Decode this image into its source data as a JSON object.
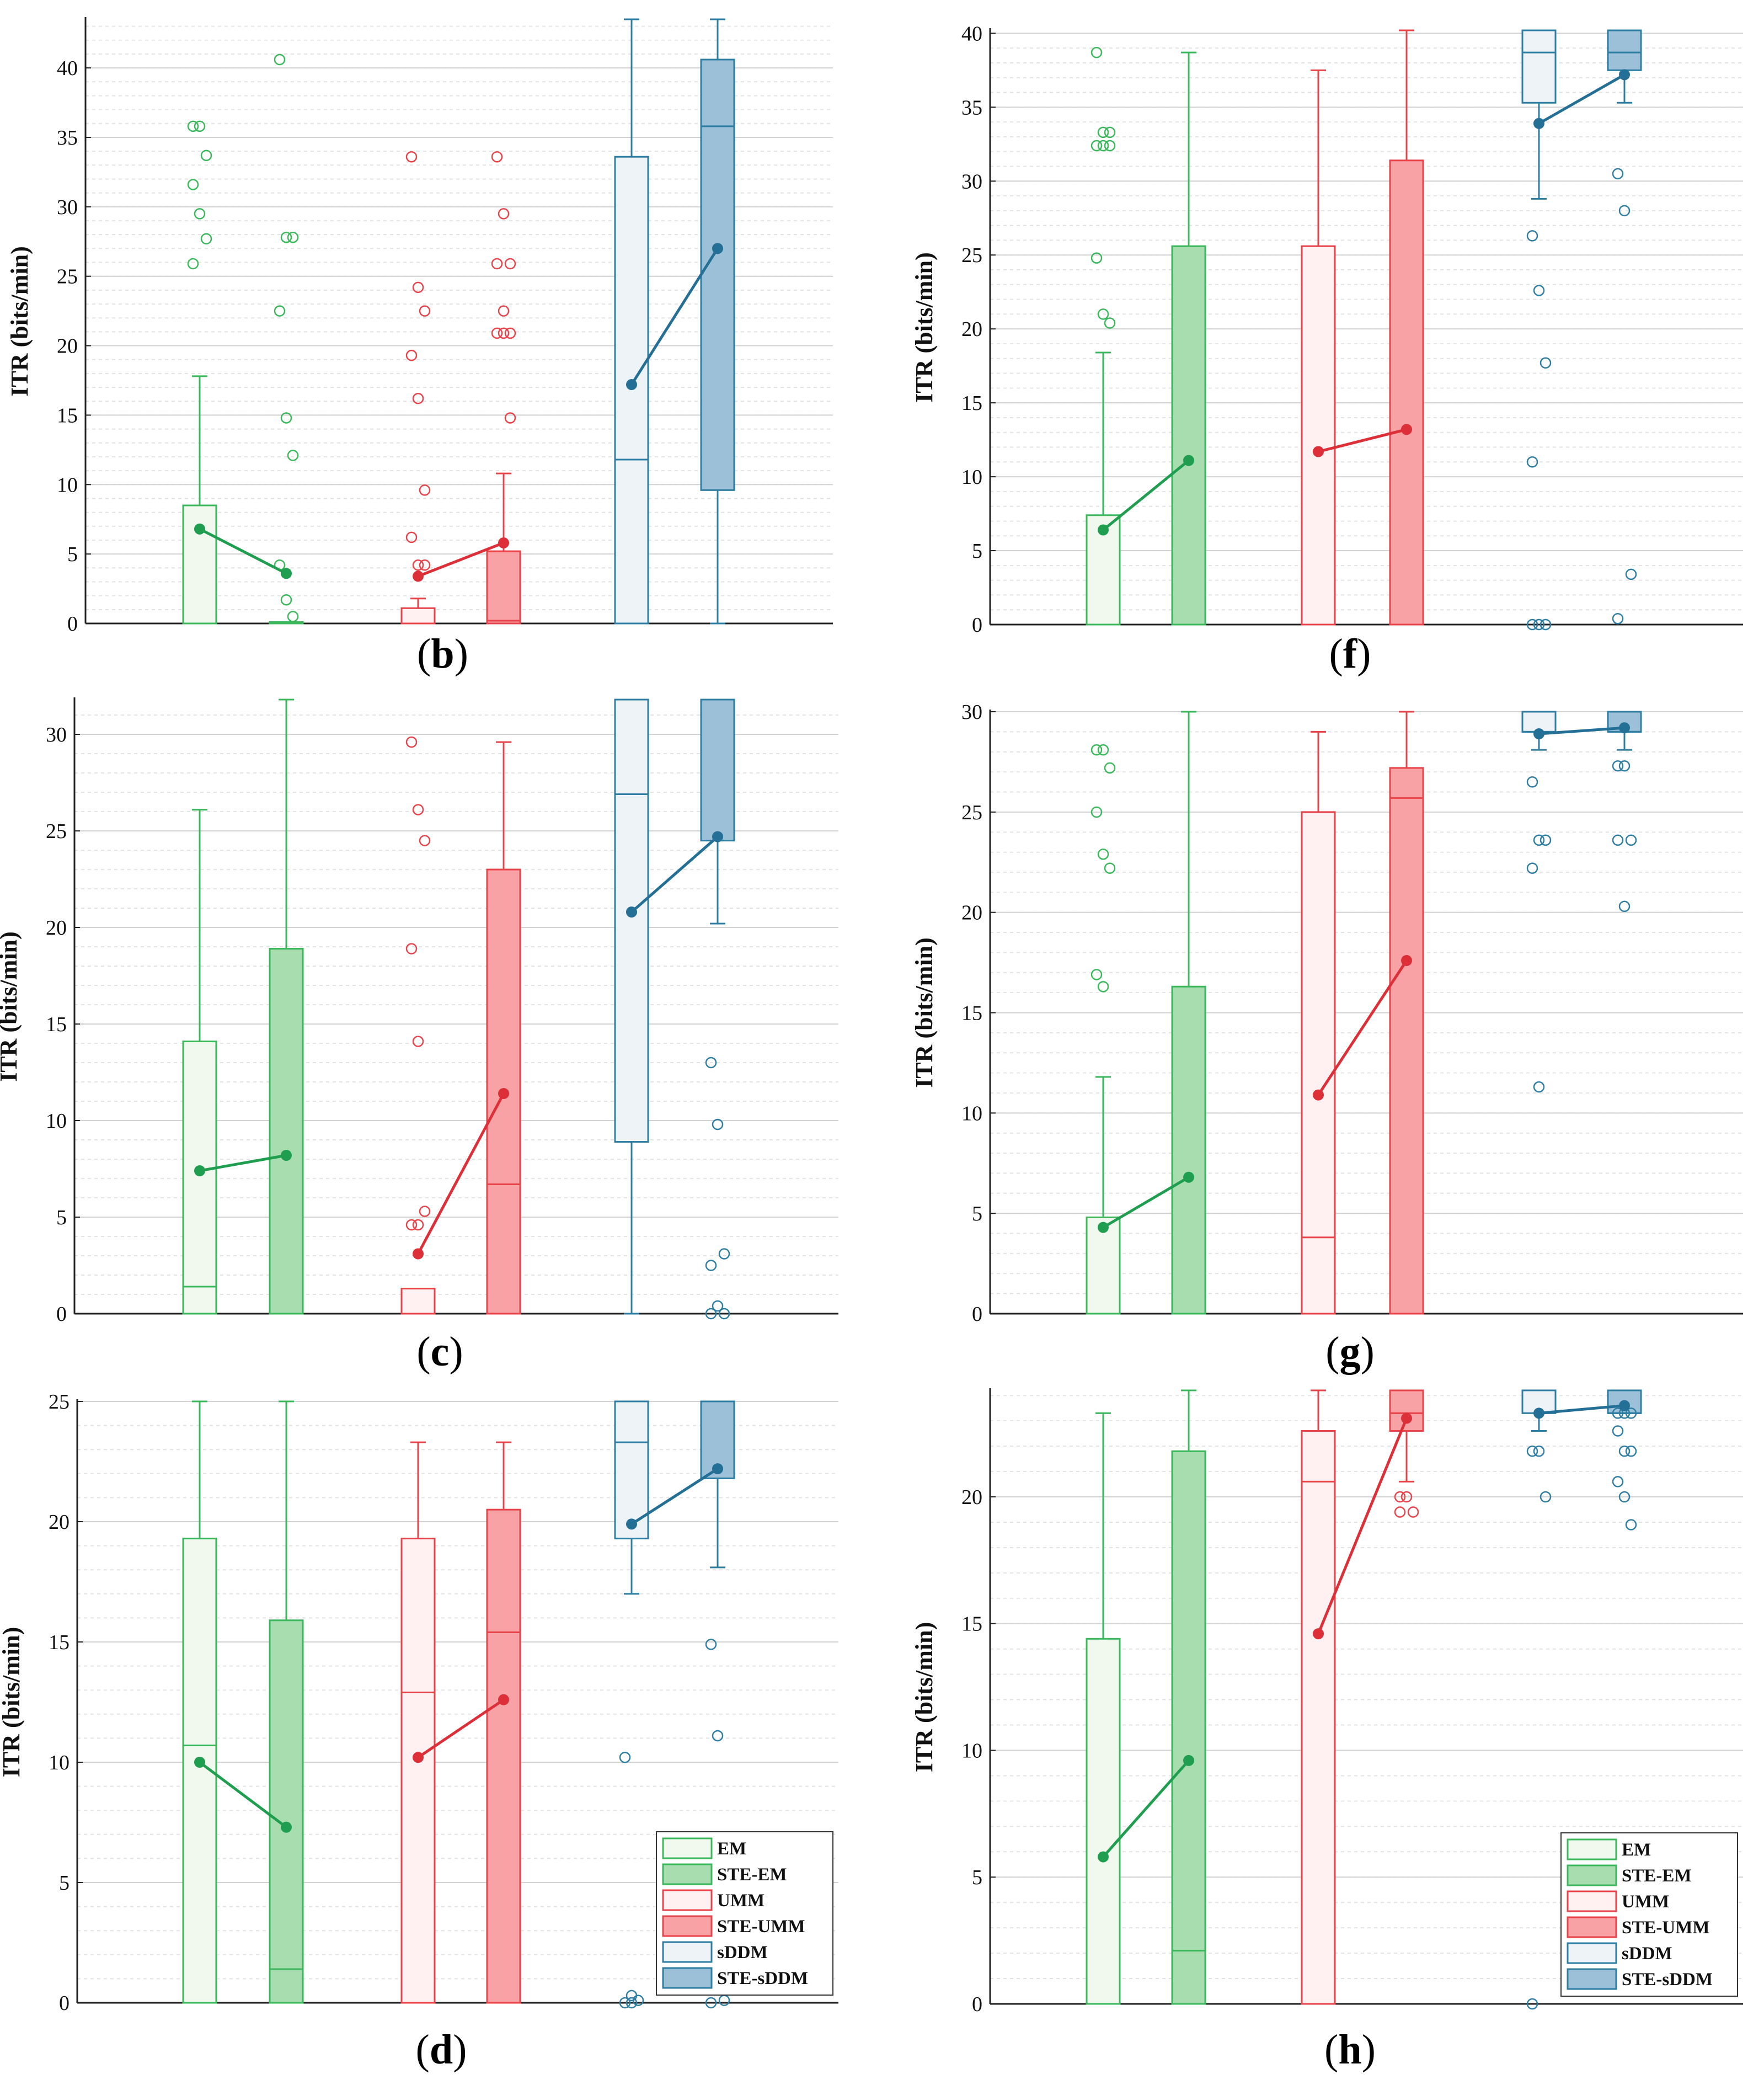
{
  "figure": {
    "series_colors": {
      "EM": {
        "stroke": "#3cb85c",
        "fill": "#f1f8ee"
      },
      "STE-EM": {
        "stroke": "#3cb85c",
        "fill": "#a8ddb0"
      },
      "UMM": {
        "stroke": "#e8434a",
        "fill": "#fff0f1"
      },
      "STE-UMM": {
        "stroke": "#e8434a",
        "fill": "#f9a2a5"
      },
      "sDDM": {
        "stroke": "#2e7ea3",
        "fill": "#eef3f8"
      },
      "STE-sDDM": {
        "stroke": "#2e7ea3",
        "fill": "#9cc0d8"
      }
    },
    "mean_colors": {
      "EM": "#1f9e50",
      "UMM": "#dd2f38",
      "sDDM": "#246f95"
    }
  },
  "chart_data": [
    {
      "id": "b",
      "type": "box",
      "letter": "b",
      "ylabel": "ITR (bits/min)",
      "ylim": [
        0,
        43.5
      ],
      "yticks": [
        0,
        5,
        10,
        15,
        20,
        25,
        30,
        35,
        40
      ],
      "groups": [
        "EM",
        "STE-EM",
        "UMM",
        "STE-UMM",
        "sDDM",
        "STE-sDDM"
      ],
      "boxes": [
        {
          "group": "EM",
          "q1": 0,
          "median": 0,
          "q3": 8.5,
          "lower_whisker": 0,
          "upper_whisker": 17.8,
          "mean": 6.8,
          "outliers": [
            35.8,
            35.8,
            33.7,
            31.6,
            29.5,
            27.7,
            25.9
          ]
        },
        {
          "group": "STE-EM",
          "q1": 0,
          "median": 0,
          "q3": 0.1,
          "lower_whisker": 0,
          "upper_whisker": 0.1,
          "mean": 3.6,
          "outliers": [
            40.6,
            27.8,
            27.8,
            22.5,
            14.8,
            12.1,
            4.2,
            1.7,
            0.5
          ]
        },
        {
          "group": "UMM",
          "q1": 0,
          "median": 0,
          "q3": 1.1,
          "lower_whisker": 0,
          "upper_whisker": 1.8,
          "mean": 3.4,
          "outliers": [
            33.6,
            24.2,
            22.5,
            19.3,
            16.2,
            9.6,
            6.2,
            4.2,
            4.2
          ]
        },
        {
          "group": "STE-UMM",
          "q1": 0,
          "median": 0.2,
          "q3": 5.2,
          "lower_whisker": 0,
          "upper_whisker": 10.8,
          "mean": 5.8,
          "outliers": [
            33.6,
            29.5,
            25.9,
            25.9,
            22.5,
            20.9,
            20.9,
            20.9,
            14.8
          ]
        },
        {
          "group": "sDDM",
          "q1": 0,
          "median": 11.8,
          "q3": 33.6,
          "lower_whisker": 0,
          "upper_whisker": 43.5,
          "mean": 17.2,
          "outliers": []
        },
        {
          "group": "STE-sDDM",
          "q1": 9.6,
          "median": 35.8,
          "q3": 40.6,
          "lower_whisker": 0,
          "upper_whisker": 43.5,
          "mean": 27.0,
          "outliers": []
        }
      ]
    },
    {
      "id": "f",
      "type": "box",
      "letter": "f",
      "ylabel": "ITR (bits/min)",
      "ylim": [
        0,
        40.2
      ],
      "yticks": [
        0,
        5,
        10,
        15,
        20,
        25,
        30,
        35,
        40
      ],
      "groups": [
        "EM",
        "STE-EM",
        "UMM",
        "STE-UMM",
        "sDDM",
        "STE-sDDM"
      ],
      "boxes": [
        {
          "group": "EM",
          "q1": 0,
          "median": 0,
          "q3": 7.4,
          "lower_whisker": 0,
          "upper_whisker": 18.4,
          "mean": 6.4,
          "outliers": [
            38.7,
            33.3,
            33.3,
            32.4,
            32.4,
            32.4,
            24.8,
            21.0,
            20.4
          ]
        },
        {
          "group": "STE-EM",
          "q1": 0,
          "median": 0,
          "q3": 25.6,
          "lower_whisker": 0,
          "upper_whisker": 38.7,
          "mean": 11.1,
          "outliers": []
        },
        {
          "group": "UMM",
          "q1": 0,
          "median": 0,
          "q3": 25.6,
          "lower_whisker": 0,
          "upper_whisker": 37.5,
          "mean": 11.7,
          "outliers": []
        },
        {
          "group": "STE-UMM",
          "q1": 0,
          "median": 0,
          "q3": 31.4,
          "lower_whisker": 0,
          "upper_whisker": 40.2,
          "mean": 13.2,
          "outliers": []
        },
        {
          "group": "sDDM",
          "q1": 35.3,
          "median": 38.7,
          "q3": 40.2,
          "lower_whisker": 28.8,
          "upper_whisker": 40.2,
          "mean": 33.9,
          "outliers": [
            26.3,
            22.6,
            17.7,
            11.0,
            0,
            0,
            0
          ]
        },
        {
          "group": "STE-sDDM",
          "q1": 37.5,
          "median": 38.7,
          "q3": 40.2,
          "lower_whisker": 35.3,
          "upper_whisker": 40.2,
          "mean": 37.2,
          "outliers": [
            30.5,
            28.0,
            3.4,
            0.4
          ]
        }
      ]
    },
    {
      "id": "c",
      "type": "box",
      "letter": "c",
      "ylabel": "ITR (bits/min)",
      "ylim": [
        0,
        31.8
      ],
      "yticks": [
        0,
        5,
        10,
        15,
        20,
        25,
        30
      ],
      "groups": [
        "EM",
        "STE-EM",
        "UMM",
        "STE-UMM",
        "sDDM",
        "STE-sDDM"
      ],
      "boxes": [
        {
          "group": "EM",
          "q1": 0,
          "median": 1.4,
          "q3": 14.1,
          "lower_whisker": 0,
          "upper_whisker": 26.1,
          "mean": 7.4,
          "outliers": []
        },
        {
          "group": "STE-EM",
          "q1": 0,
          "median": 0,
          "q3": 18.9,
          "lower_whisker": 0,
          "upper_whisker": 31.8,
          "mean": 8.2,
          "outliers": []
        },
        {
          "group": "UMM",
          "q1": 0,
          "median": 0,
          "q3": 1.3,
          "lower_whisker": 0,
          "upper_whisker": 1.3,
          "mean": 3.1,
          "outliers": [
            29.6,
            26.1,
            24.5,
            18.9,
            14.1,
            5.3,
            4.6,
            4.6
          ]
        },
        {
          "group": "STE-UMM",
          "q1": 0,
          "median": 6.7,
          "q3": 23.0,
          "lower_whisker": 0,
          "upper_whisker": 29.6,
          "mean": 11.4,
          "outliers": []
        },
        {
          "group": "sDDM",
          "q1": 8.9,
          "median": 26.9,
          "q3": 31.8,
          "lower_whisker": 0,
          "upper_whisker": 31.8,
          "mean": 20.8,
          "outliers": []
        },
        {
          "group": "STE-sDDM",
          "q1": 24.5,
          "median": 31.8,
          "q3": 31.8,
          "lower_whisker": 20.2,
          "upper_whisker": 31.8,
          "mean": 24.7,
          "outliers": [
            13.0,
            9.8,
            3.1,
            2.5,
            0.4,
            0,
            0
          ]
        }
      ]
    },
    {
      "id": "g",
      "type": "box",
      "letter": "g",
      "ylabel": "ITR (bits/min)",
      "ylim": [
        0,
        30.0
      ],
      "yticks": [
        0,
        5,
        10,
        15,
        20,
        25,
        30
      ],
      "groups": [
        "EM",
        "STE-EM",
        "UMM",
        "STE-UMM",
        "sDDM",
        "STE-sDDM"
      ],
      "boxes": [
        {
          "group": "EM",
          "q1": 0,
          "median": 0,
          "q3": 4.8,
          "lower_whisker": 0,
          "upper_whisker": 11.8,
          "mean": 4.3,
          "outliers": [
            28.1,
            28.1,
            27.2,
            25.0,
            22.9,
            22.2,
            16.9,
            16.3
          ]
        },
        {
          "group": "STE-EM",
          "q1": 0,
          "median": 0,
          "q3": 16.3,
          "lower_whisker": 0,
          "upper_whisker": 30.0,
          "mean": 6.8,
          "outliers": []
        },
        {
          "group": "UMM",
          "q1": 0,
          "median": 3.8,
          "q3": 25.0,
          "lower_whisker": 0,
          "upper_whisker": 29.0,
          "mean": 10.9,
          "outliers": []
        },
        {
          "group": "STE-UMM",
          "q1": 0,
          "median": 25.7,
          "q3": 27.2,
          "lower_whisker": 0,
          "upper_whisker": 30.0,
          "mean": 17.6,
          "outliers": []
        },
        {
          "group": "sDDM",
          "q1": 29.0,
          "median": 29.0,
          "q3": 30.0,
          "lower_whisker": 28.1,
          "upper_whisker": 30.0,
          "mean": 28.9,
          "outliers": [
            26.5,
            23.6,
            23.6,
            22.2,
            11.3
          ]
        },
        {
          "group": "STE-sDDM",
          "q1": 29.0,
          "median": 29.0,
          "q3": 30.0,
          "lower_whisker": 28.1,
          "upper_whisker": 30.0,
          "mean": 29.2,
          "outliers": [
            27.3,
            27.3,
            23.6,
            23.6,
            20.3
          ]
        }
      ]
    },
    {
      "id": "d",
      "type": "box",
      "letter": "d",
      "ylabel": "ITR (bits/min)",
      "ylim": [
        0,
        25.0
      ],
      "yticks": [
        0,
        5,
        10,
        15,
        20,
        25
      ],
      "groups": [
        "EM",
        "STE-EM",
        "UMM",
        "STE-UMM",
        "sDDM",
        "STE-sDDM"
      ],
      "boxes": [
        {
          "group": "EM",
          "q1": 0,
          "median": 10.7,
          "q3": 19.3,
          "lower_whisker": 0,
          "upper_whisker": 25.0,
          "mean": 10.0,
          "outliers": []
        },
        {
          "group": "STE-EM",
          "q1": 0,
          "median": 1.4,
          "q3": 15.9,
          "lower_whisker": 0,
          "upper_whisker": 25.0,
          "mean": 7.3,
          "outliers": []
        },
        {
          "group": "UMM",
          "q1": 0,
          "median": 12.9,
          "q3": 19.3,
          "lower_whisker": 0,
          "upper_whisker": 23.3,
          "mean": 10.2,
          "outliers": []
        },
        {
          "group": "STE-UMM",
          "q1": 0,
          "median": 15.4,
          "q3": 20.5,
          "lower_whisker": 0,
          "upper_whisker": 23.3,
          "mean": 12.6,
          "outliers": []
        },
        {
          "group": "sDDM",
          "q1": 19.3,
          "median": 23.3,
          "q3": 25.0,
          "lower_whisker": 17.0,
          "upper_whisker": 25.0,
          "mean": 19.9,
          "outliers": [
            10.2,
            0.3,
            0.1,
            0,
            0
          ]
        },
        {
          "group": "STE-sDDM",
          "q1": 21.8,
          "median": 25.0,
          "q3": 25.0,
          "lower_whisker": 18.1,
          "upper_whisker": 25.0,
          "mean": 22.2,
          "outliers": [
            14.9,
            11.1,
            0.1,
            0
          ]
        }
      ],
      "legend": [
        "EM",
        "STE-EM",
        "UMM",
        "STE-UMM",
        "sDDM",
        "STE-sDDM"
      ],
      "legend_position": "bottom-right"
    },
    {
      "id": "h",
      "type": "box",
      "letter": "h",
      "ylabel": "ITR (bits/min)",
      "ylim": [
        0,
        24.2
      ],
      "yticks": [
        0,
        5,
        10,
        15,
        20
      ],
      "groups": [
        "EM",
        "STE-EM",
        "UMM",
        "STE-UMM",
        "sDDM",
        "STE-sDDM"
      ],
      "boxes": [
        {
          "group": "EM",
          "q1": 0,
          "median": 0,
          "q3": 14.4,
          "lower_whisker": 0,
          "upper_whisker": 23.3,
          "mean": 5.8,
          "outliers": []
        },
        {
          "group": "STE-EM",
          "q1": 0,
          "median": 2.1,
          "q3": 21.8,
          "lower_whisker": 0,
          "upper_whisker": 24.2,
          "mean": 9.6,
          "outliers": []
        },
        {
          "group": "UMM",
          "q1": 0,
          "median": 20.6,
          "q3": 22.6,
          "lower_whisker": 0,
          "upper_whisker": 24.2,
          "mean": 14.6,
          "outliers": []
        },
        {
          "group": "STE-UMM",
          "q1": 22.6,
          "median": 23.3,
          "q3": 24.2,
          "lower_whisker": 20.6,
          "upper_whisker": 24.2,
          "mean": 23.1,
          "outliers": [
            20.0,
            20.0,
            19.4,
            19.4
          ]
        },
        {
          "group": "sDDM",
          "q1": 23.3,
          "median": 24.2,
          "q3": 24.2,
          "lower_whisker": 22.6,
          "upper_whisker": 24.2,
          "mean": 23.3,
          "outliers": [
            21.8,
            21.8,
            20.0,
            0
          ]
        },
        {
          "group": "STE-sDDM",
          "q1": 23.3,
          "median": 23.3,
          "q3": 24.2,
          "lower_whisker": 23.3,
          "upper_whisker": 24.2,
          "mean": 23.6,
          "outliers": [
            23.3,
            23.3,
            23.3,
            22.6,
            21.8,
            21.8,
            20.6,
            20.0,
            18.9
          ]
        }
      ],
      "legend": [
        "EM",
        "STE-EM",
        "UMM",
        "STE-UMM",
        "sDDM",
        "STE-sDDM"
      ],
      "legend_position": "bottom-right"
    }
  ]
}
